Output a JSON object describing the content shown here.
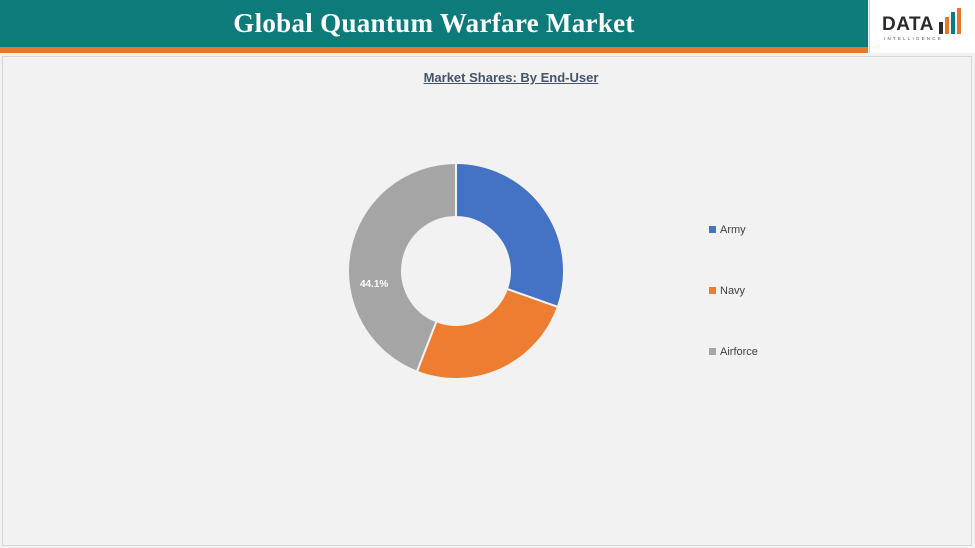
{
  "header": {
    "title": "Global Quantum Warfare Market",
    "logo_text": "DATA",
    "logo_sub": "INTELLIGENCE"
  },
  "colors": {
    "header_bg": "#0e7b7b",
    "header_stripe": "#e8772e",
    "army": "#4472c4",
    "navy": "#ed7d31",
    "airforce": "#a5a5a5"
  },
  "chart_data": {
    "type": "pie",
    "title": "Market Shares: By End-User",
    "categories": [
      "Army",
      "Navy",
      "Airforce"
    ],
    "values": [
      30.4,
      25.5,
      44.1
    ],
    "colors": [
      "#4472c4",
      "#ed7d31",
      "#a5a5a5"
    ],
    "data_labels": [
      "",
      "",
      "44.1%"
    ],
    "donut": true,
    "legend_position": "right"
  }
}
